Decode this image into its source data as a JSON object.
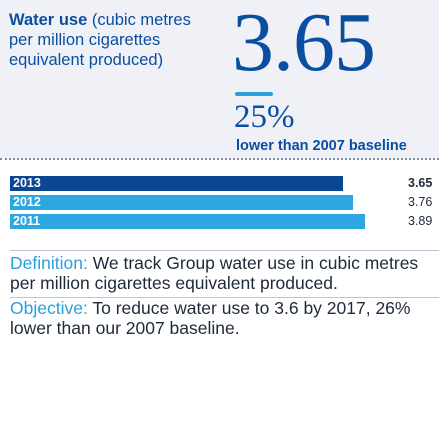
{
  "metric": {
    "title_bold": "Water use",
    "title_rest": " (cubic metres per million cigarettes equivalent produced)",
    "value": "3.65",
    "change_percent": "25%",
    "change_caption": "lower than 2007 baseline"
  },
  "colors": {
    "brand_blue": "#0a4ea2",
    "accent_blue": "#2aa0dc",
    "bar_current": "#0b4690",
    "bar_previous": "#2ea6e0"
  },
  "chart_data": {
    "type": "bar",
    "orientation": "horizontal",
    "categories": [
      "2013",
      "2012",
      "2011"
    ],
    "values": [
      3.65,
      3.76,
      3.89
    ],
    "value_labels": [
      "3.65",
      "3.76",
      "3.89"
    ],
    "xlim": [
      0,
      3.89
    ],
    "title": "",
    "xlabel": "",
    "ylabel": "",
    "grid": false,
    "legend": "none"
  },
  "definition": {
    "label": "Definition:",
    "text": " We track Group water use in cubic metres per million cigarettes equivalent produced."
  },
  "objective": {
    "label": "Objective:",
    "text": " To reduce water use to 3.6 by 2017, 26% lower than our 2007 baseline."
  }
}
